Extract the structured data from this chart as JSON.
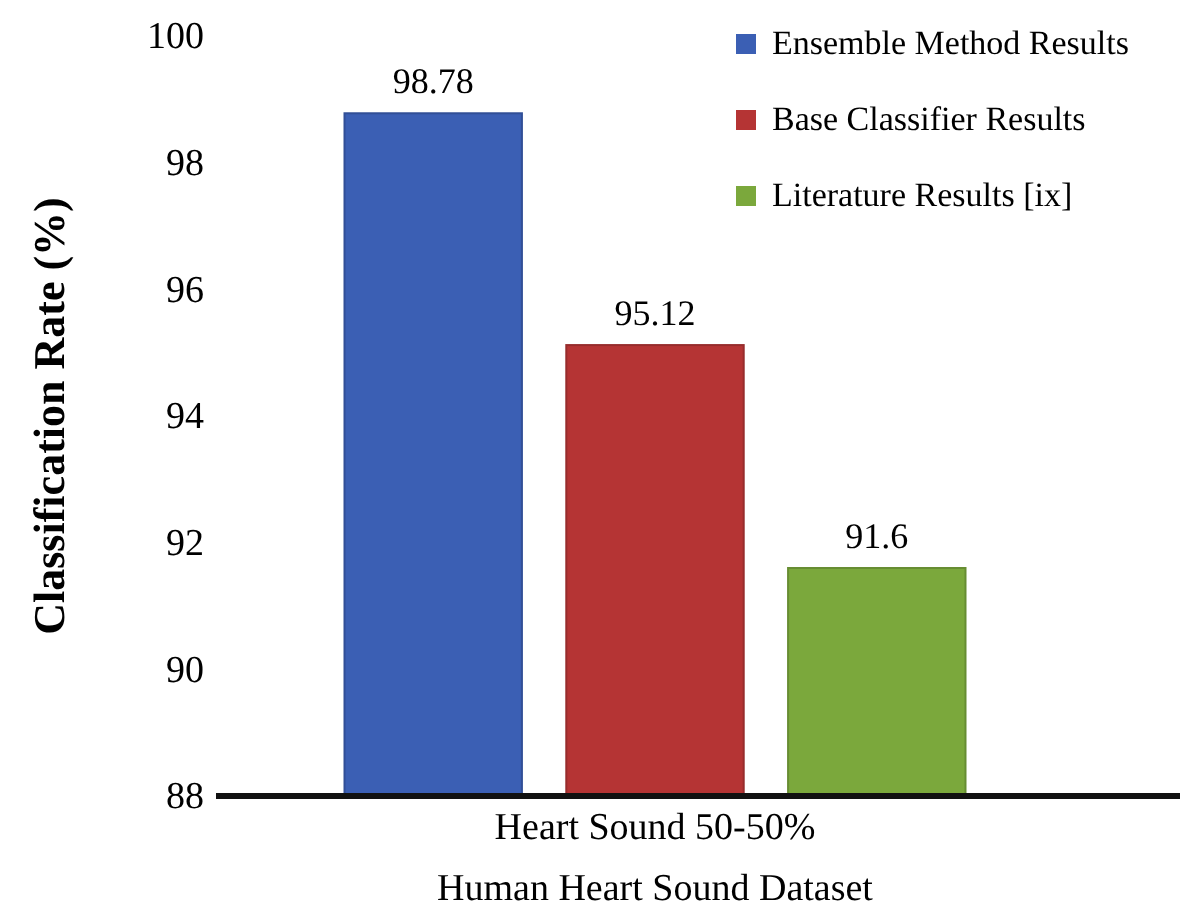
{
  "chart_data": {
    "type": "bar",
    "xlabel": "Human Heart Sound Dataset",
    "ylabel": "Classification Rate (%)",
    "categories": [
      "Heart Sound 50-50%"
    ],
    "series": [
      {
        "name": "Ensemble Method Results",
        "color": "#3b5fb4",
        "values": [
          98.78
        ]
      },
      {
        "name": "Base Classifier Results",
        "color": "#b53434",
        "values": [
          95.12
        ]
      },
      {
        "name": "Literature Results [ix]",
        "color": "#7ba83c",
        "values": [
          91.6
        ]
      }
    ],
    "ylim": [
      88,
      100
    ],
    "yticks": [
      88,
      90,
      92,
      94,
      96,
      98,
      100
    ],
    "data_labels": true,
    "legend": "top right"
  }
}
